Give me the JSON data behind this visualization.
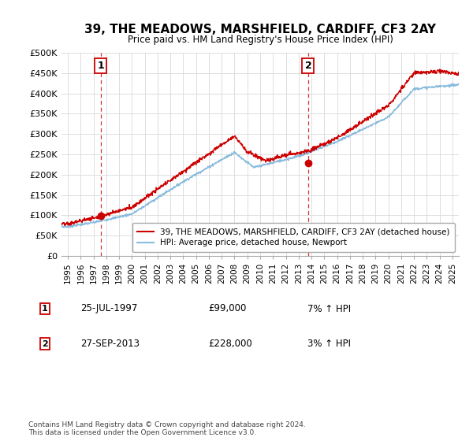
{
  "title": "39, THE MEADOWS, MARSHFIELD, CARDIFF, CF3 2AY",
  "subtitle": "Price paid vs. HM Land Registry's House Price Index (HPI)",
  "ylabel_ticks": [
    "£0",
    "£50K",
    "£100K",
    "£150K",
    "£200K",
    "£250K",
    "£300K",
    "£350K",
    "£400K",
    "£450K",
    "£500K"
  ],
  "ytick_values": [
    0,
    50000,
    100000,
    150000,
    200000,
    250000,
    300000,
    350000,
    400000,
    450000,
    500000
  ],
  "ylim": [
    0,
    500000
  ],
  "xlim_start": 1994.5,
  "xlim_end": 2025.5,
  "sale1_x": 1997.56,
  "sale1_y": 99000,
  "sale1_label": "1",
  "sale2_x": 2013.75,
  "sale2_y": 228000,
  "sale2_label": "2",
  "line_color_property": "#cc0000",
  "line_color_hpi": "#88bbdd",
  "dot_color": "#cc0000",
  "dashed_color": "#cc0000",
  "legend_property_label": "39, THE MEADOWS, MARSHFIELD, CARDIFF, CF3 2AY (detached house)",
  "legend_hpi_label": "HPI: Average price, detached house, Newport",
  "annot1_date": "25-JUL-1997",
  "annot1_price": "£99,000",
  "annot1_hpi": "7% ↑ HPI",
  "annot2_date": "27-SEP-2013",
  "annot2_price": "£228,000",
  "annot2_hpi": "3% ↑ HPI",
  "footer": "Contains HM Land Registry data © Crown copyright and database right 2024.\nThis data is licensed under the Open Government Licence v3.0.",
  "background_color": "#ffffff",
  "grid_color": "#dddddd",
  "xtick_years": [
    1995,
    1996,
    1997,
    1998,
    1999,
    2000,
    2001,
    2002,
    2003,
    2004,
    2005,
    2006,
    2007,
    2008,
    2009,
    2010,
    2011,
    2012,
    2013,
    2014,
    2015,
    2016,
    2017,
    2018,
    2019,
    2020,
    2021,
    2022,
    2023,
    2024,
    2025
  ]
}
